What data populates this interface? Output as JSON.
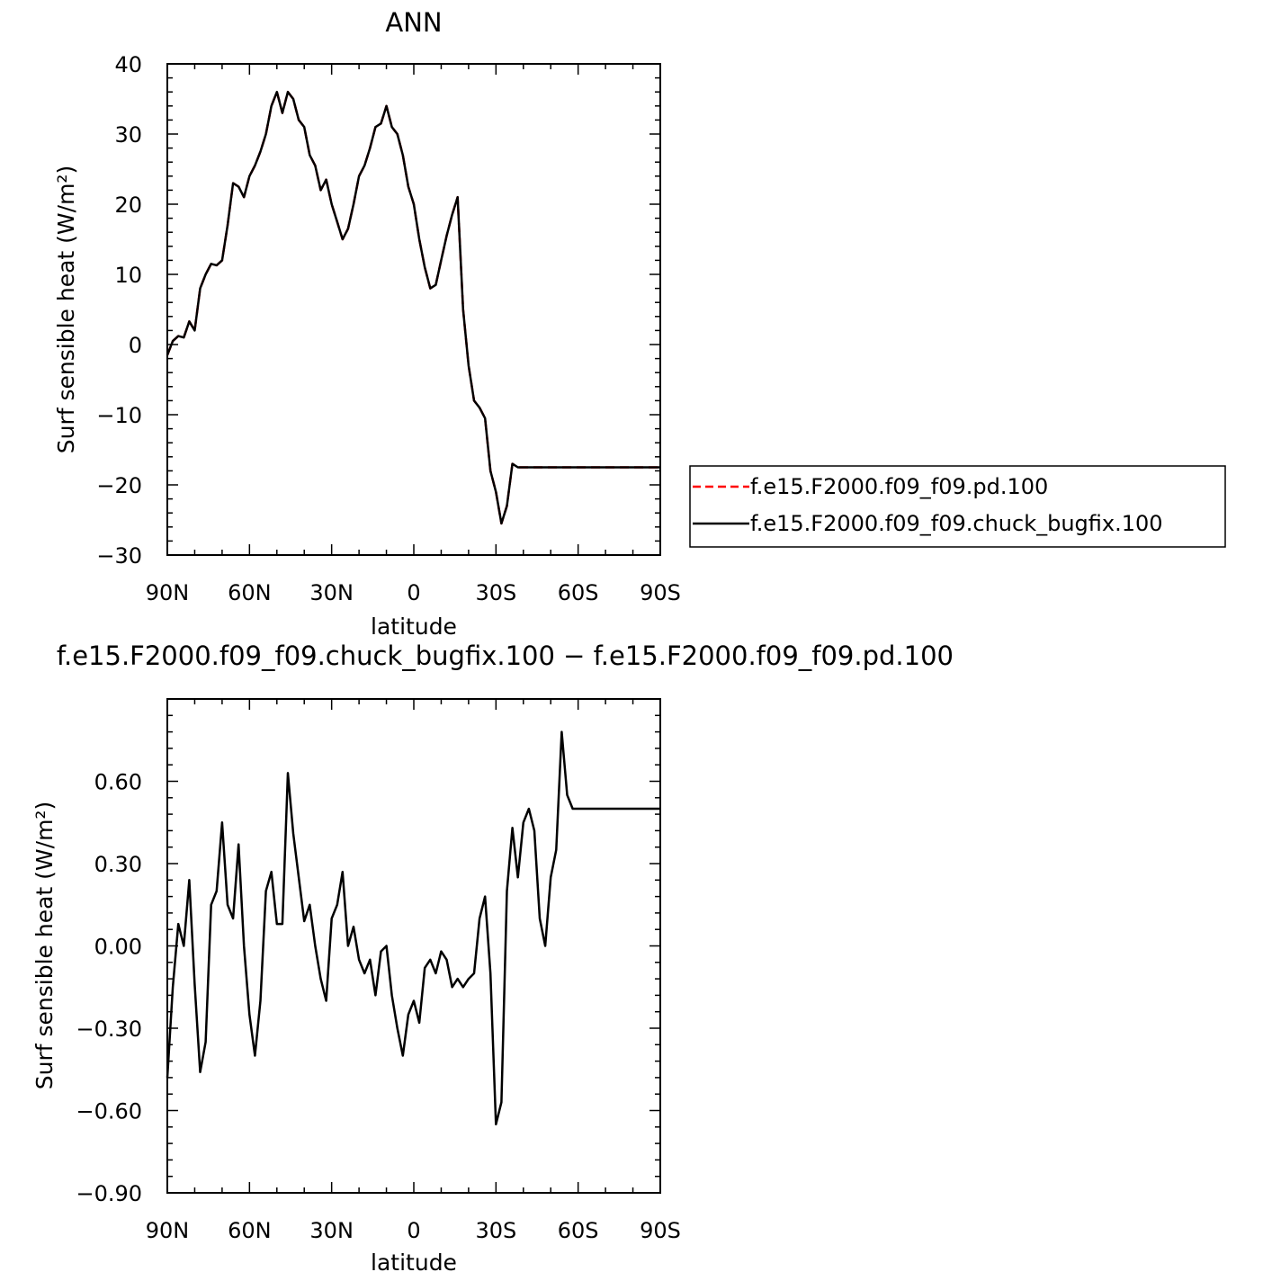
{
  "chart_data": [
    {
      "type": "line",
      "title": "ANN",
      "xlabel": "latitude",
      "ylabel": "Surf sensible heat (W/m²)",
      "xlim": [
        90,
        -90
      ],
      "ylim": [
        -30,
        40
      ],
      "xtick_values": [
        90,
        60,
        30,
        0,
        -30,
        -60,
        -90
      ],
      "xtick_labels": [
        "90N",
        "60N",
        "30N",
        "0",
        "30S",
        "60S",
        "90S"
      ],
      "ytick_values": [
        -30,
        -20,
        -10,
        0,
        10,
        20,
        30,
        40
      ],
      "ytick_labels": [
        "−30",
        "−20",
        "−10",
        "0",
        "10",
        "20",
        "30",
        "40"
      ],
      "legend_position": "right",
      "x": [
        90,
        88,
        86,
        84,
        82,
        80,
        78,
        76,
        74,
        72,
        70,
        68,
        66,
        64,
        62,
        60,
        58,
        56,
        54,
        52,
        50,
        48,
        46,
        44,
        42,
        40,
        38,
        36,
        34,
        32,
        30,
        28,
        26,
        24,
        22,
        20,
        18,
        16,
        14,
        12,
        10,
        8,
        6,
        4,
        2,
        0,
        -2,
        -4,
        -6,
        -8,
        -10,
        -12,
        -14,
        -16,
        -18,
        -20,
        -22,
        -24,
        -26,
        -28,
        -30,
        -32,
        -34,
        -36,
        -38,
        -40,
        -42,
        -44,
        -46,
        -48,
        -50,
        -52,
        -54,
        -56,
        -58,
        -60,
        -62,
        -64,
        -65,
        -66,
        -68,
        -70,
        -72,
        -74,
        -76,
        -78,
        -80,
        -82,
        -84,
        -85,
        -86,
        -88,
        -90
      ],
      "series": [
        {
          "name": "f.e15.F2000.f09_f09.pd.100",
          "color": "#ff0000",
          "dash": "dashed",
          "values": [
            -1.5,
            0.5,
            1.2,
            1.0,
            3.3,
            2.0,
            8.0,
            10.0,
            11.5,
            11.3,
            12.0,
            17.0,
            23.0,
            22.5,
            21.0,
            24.0,
            25.5,
            27.5,
            30.0,
            34.0,
            36.0,
            33.0,
            36.0,
            35.0,
            32.0,
            31.0,
            27.0,
            25.5,
            22.0,
            23.5,
            20.0,
            17.5,
            15.0,
            16.5,
            20.0,
            24.0,
            25.5,
            28.0,
            31.0,
            31.5,
            34.0,
            31.0,
            30.0,
            27.0,
            22.5,
            20.0,
            15.0,
            11.0,
            8.0,
            8.5,
            12.0,
            15.5,
            18.5,
            21.0,
            5.0,
            -3.0,
            -8.0,
            -9.0,
            -10.5,
            -18.0,
            -21.0,
            -25.5,
            -23.0,
            -17.0,
            -17.5,
            -17.5,
            -17.5,
            -17.5,
            -17.5,
            -17.5,
            -17.5,
            -17.5,
            -17.5,
            -17.5,
            -17.5,
            -17.5,
            -17.5,
            -17.5,
            -17.5,
            -17.5,
            -17.5,
            -17.5,
            -17.5,
            -17.5,
            -17.5,
            -17.5,
            -17.5,
            -17.5,
            -17.5,
            -17.5,
            -17.5,
            -17.5,
            -17.5
          ]
        },
        {
          "name": "f.e15.F2000.f09_f09.chuck_bugfix.100",
          "color": "#000000",
          "dash": "solid",
          "values": [
            -1.5,
            0.5,
            1.2,
            1.0,
            3.3,
            2.0,
            8.0,
            10.0,
            11.5,
            11.3,
            12.0,
            17.0,
            23.0,
            22.5,
            21.0,
            24.0,
            25.5,
            27.5,
            30.0,
            34.0,
            36.0,
            33.0,
            36.0,
            35.0,
            32.0,
            31.0,
            27.0,
            25.5,
            22.0,
            23.5,
            20.0,
            17.5,
            15.0,
            16.5,
            20.0,
            24.0,
            25.5,
            28.0,
            31.0,
            31.5,
            34.0,
            31.0,
            30.0,
            27.0,
            22.5,
            20.0,
            15.0,
            11.0,
            8.0,
            8.5,
            12.0,
            15.5,
            18.5,
            21.0,
            5.0,
            -3.0,
            -8.0,
            -9.0,
            -10.5,
            -18.0,
            -21.0,
            -25.5,
            -23.0,
            -17.0,
            -17.5,
            -17.5,
            -17.5,
            -17.5,
            -17.5,
            -17.5,
            -17.5,
            -17.5,
            -17.5,
            -17.5,
            -17.5,
            -17.5,
            -17.5,
            -17.5,
            -17.5,
            -17.5,
            -17.5,
            -17.5,
            -17.5,
            -17.5,
            -17.5,
            -17.5,
            -17.5,
            -17.5,
            -17.5,
            -17.5,
            -17.5,
            -17.5,
            -17.5
          ]
        }
      ]
    },
    {
      "type": "line",
      "title": "f.e15.F2000.f09_f09.chuck_bugfix.100 − f.e15.F2000.f09_f09.pd.100",
      "xlabel": "latitude",
      "ylabel": "Surf sensible heat (W/m²)",
      "xlim": [
        90,
        -90
      ],
      "ylim": [
        -0.9,
        0.9
      ],
      "xtick_values": [
        90,
        60,
        30,
        0,
        -30,
        -60,
        -90
      ],
      "xtick_labels": [
        "90N",
        "60N",
        "30N",
        "0",
        "30S",
        "60S",
        "90S"
      ],
      "ytick_values": [
        -0.9,
        -0.6,
        -0.3,
        0.0,
        0.3,
        0.6
      ],
      "ytick_labels": [
        "−0.90",
        "−0.60",
        "−0.30",
        "0.00",
        "0.30",
        "0.60"
      ],
      "x": [
        90,
        88,
        86,
        84,
        82,
        80,
        78,
        76,
        74,
        72,
        70,
        68,
        66,
        64,
        62,
        60,
        58,
        56,
        54,
        52,
        50,
        48,
        46,
        44,
        42,
        40,
        38,
        36,
        34,
        32,
        30,
        28,
        26,
        24,
        22,
        20,
        18,
        16,
        14,
        12,
        10,
        8,
        6,
        4,
        2,
        0,
        -2,
        -4,
        -6,
        -8,
        -10,
        -12,
        -14,
        -16,
        -18,
        -20,
        -22,
        -24,
        -26,
        -28,
        -30,
        -32,
        -34,
        -36,
        -38,
        -40,
        -42,
        -44,
        -46,
        -48,
        -50,
        -52,
        -54,
        -56,
        -58,
        -60,
        -62,
        -64,
        -65,
        -66,
        -68,
        -70,
        -72,
        -74,
        -76,
        -78,
        -80,
        -82,
        -84,
        -85,
        -86,
        -88,
        -90
      ],
      "series": [
        {
          "color": "#000000",
          "dash": "solid",
          "values": [
            -0.48,
            -0.15,
            0.08,
            0.0,
            0.24,
            -0.14,
            -0.46,
            -0.35,
            0.15,
            0.2,
            0.45,
            0.15,
            0.1,
            0.37,
            0.0,
            -0.25,
            -0.4,
            -0.2,
            0.2,
            0.27,
            0.08,
            0.08,
            0.63,
            0.41,
            0.25,
            0.09,
            0.15,
            0.0,
            -0.12,
            -0.2,
            0.1,
            0.15,
            0.27,
            0.0,
            0.07,
            -0.05,
            -0.1,
            -0.05,
            -0.18,
            -0.02,
            0.0,
            -0.18,
            -0.3,
            -0.4,
            -0.25,
            -0.2,
            -0.28,
            -0.08,
            -0.05,
            -0.1,
            -0.02,
            -0.05,
            -0.15,
            -0.12,
            -0.15,
            -0.12,
            -0.1,
            0.1,
            0.18,
            -0.1,
            -0.65,
            -0.57,
            0.2,
            0.43,
            0.25,
            0.45,
            0.5,
            0.42,
            0.1,
            0.0,
            0.25,
            0.35,
            0.78,
            0.55,
            0.5,
            0.5,
            0.5,
            0.5,
            0.5,
            0.5,
            0.5,
            0.5,
            0.5,
            0.5,
            0.5,
            0.5,
            0.5,
            0.5,
            0.5,
            0.5,
            0.5,
            0.5,
            0.5
          ]
        }
      ]
    }
  ]
}
